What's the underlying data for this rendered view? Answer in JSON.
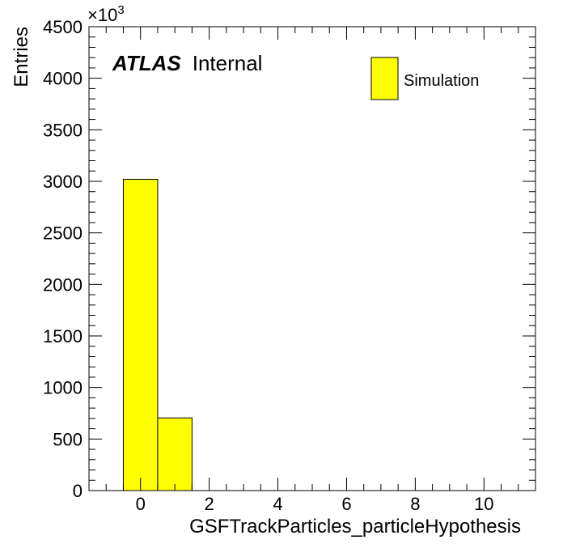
{
  "chart_data": {
    "type": "bar",
    "histogram": true,
    "bins": [
      {
        "low": -0.5,
        "high": 0.5,
        "value": 3020
      },
      {
        "low": 0.5,
        "high": 1.5,
        "value": 705
      }
    ],
    "xlabel": "GSFTrackParticles_particleHypothesis",
    "ylabel": "Entries",
    "xlim": [
      -1.5,
      11.5
    ],
    "ylim": [
      0,
      4500
    ],
    "y_multiplier": "×10",
    "y_multiplier_exp": "3",
    "xticks": [
      0,
      2,
      4,
      6,
      8,
      10
    ],
    "xtick_labels": [
      "0",
      "2",
      "4",
      "6",
      "8",
      "10"
    ],
    "yticks": [
      0,
      500,
      1000,
      1500,
      2000,
      2500,
      3000,
      3500,
      4000,
      4500
    ],
    "ytick_labels": [
      "0",
      "500",
      "1000",
      "1500",
      "2000",
      "2500",
      "3000",
      "3500",
      "4000",
      "4500"
    ],
    "fill_color": "#ffff00",
    "grid": false,
    "legend_placement": "top-right",
    "legend": [
      {
        "name": "Simulation",
        "color": "#ffff00"
      }
    ],
    "atlas_label": "ATLAS",
    "atlas_sublabel": "Internal"
  }
}
